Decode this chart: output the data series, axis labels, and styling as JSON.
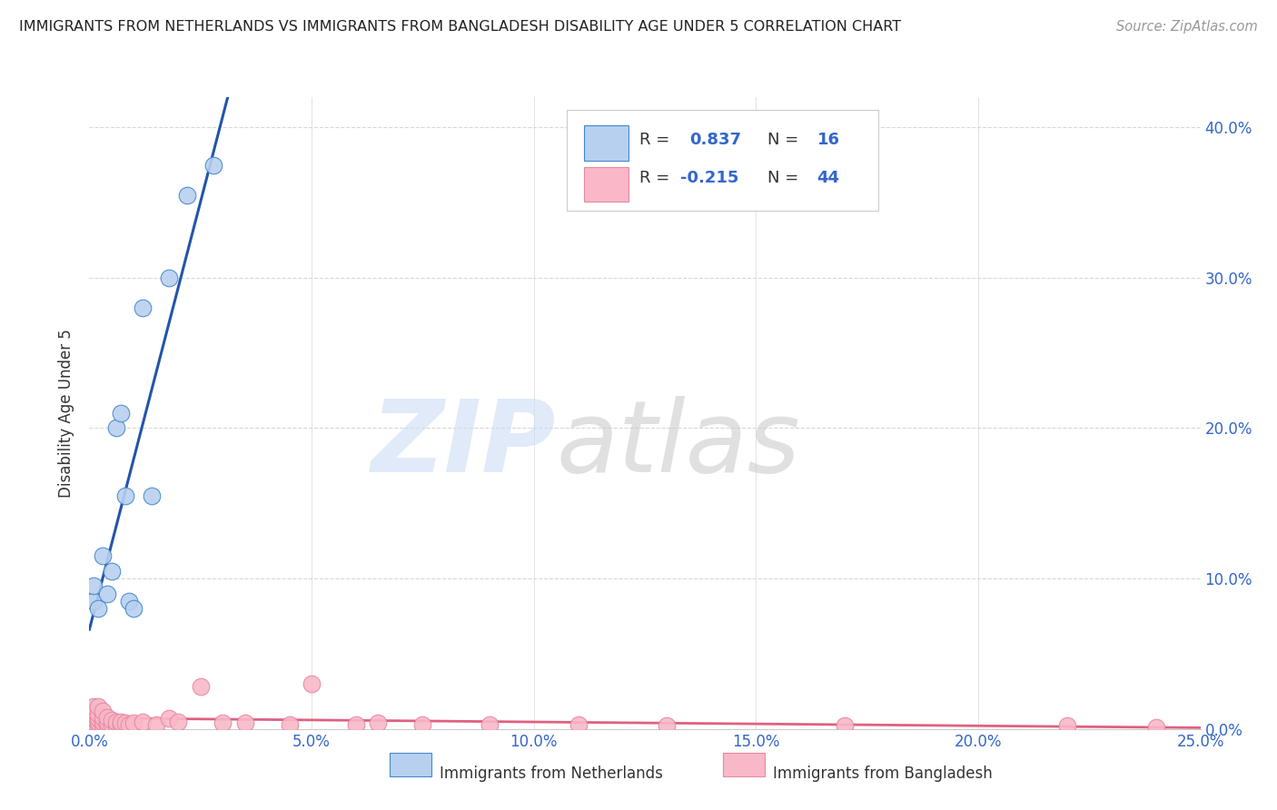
{
  "title": "IMMIGRANTS FROM NETHERLANDS VS IMMIGRANTS FROM BANGLADESH DISABILITY AGE UNDER 5 CORRELATION CHART",
  "source": "Source: ZipAtlas.com",
  "ylabel": "Disability Age Under 5",
  "xlim": [
    0.0,
    0.25
  ],
  "ylim": [
    0.0,
    0.42
  ],
  "xticks": [
    0.0,
    0.05,
    0.1,
    0.15,
    0.2,
    0.25
  ],
  "yticks": [
    0.0,
    0.1,
    0.2,
    0.3,
    0.4
  ],
  "ytick_labels_right": [
    "0.0%",
    "10.0%",
    "20.0%",
    "30.0%",
    "40.0%"
  ],
  "xtick_labels": [
    "0.0%",
    "5.0%",
    "10.0%",
    "15.0%",
    "20.0%",
    "25.0%"
  ],
  "background_color": "#ffffff",
  "grid_color": "#d8d8d8",
  "netherlands_face_color": "#b8d0f0",
  "netherlands_edge_color": "#4488cc",
  "netherlands_line_color": "#2255aa",
  "bangladesh_face_color": "#f8b8c8",
  "bangladesh_edge_color": "#e888a0",
  "bangladesh_line_color": "#e06080",
  "r_netherlands": 0.837,
  "n_netherlands": 16,
  "r_bangladesh": -0.215,
  "n_bangladesh": 44,
  "netherlands_x": [
    0.001,
    0.001,
    0.002,
    0.003,
    0.004,
    0.005,
    0.006,
    0.007,
    0.008,
    0.009,
    0.01,
    0.012,
    0.014,
    0.018,
    0.022,
    0.028
  ],
  "netherlands_y": [
    0.085,
    0.095,
    0.08,
    0.115,
    0.09,
    0.105,
    0.2,
    0.21,
    0.155,
    0.085,
    0.08,
    0.28,
    0.155,
    0.3,
    0.355,
    0.375
  ],
  "bangladesh_x": [
    0.001,
    0.001,
    0.001,
    0.001,
    0.001,
    0.002,
    0.002,
    0.002,
    0.002,
    0.002,
    0.003,
    0.003,
    0.003,
    0.003,
    0.004,
    0.004,
    0.004,
    0.005,
    0.005,
    0.006,
    0.006,
    0.007,
    0.007,
    0.008,
    0.009,
    0.01,
    0.012,
    0.015,
    0.018,
    0.02,
    0.025,
    0.03,
    0.035,
    0.045,
    0.05,
    0.06,
    0.065,
    0.075,
    0.09,
    0.11,
    0.13,
    0.17,
    0.22,
    0.24
  ],
  "bangladesh_y": [
    0.005,
    0.007,
    0.01,
    0.012,
    0.015,
    0.003,
    0.005,
    0.007,
    0.01,
    0.015,
    0.003,
    0.005,
    0.008,
    0.012,
    0.003,
    0.005,
    0.008,
    0.003,
    0.006,
    0.003,
    0.005,
    0.003,
    0.005,
    0.004,
    0.003,
    0.004,
    0.005,
    0.003,
    0.007,
    0.005,
    0.028,
    0.004,
    0.004,
    0.003,
    0.03,
    0.003,
    0.004,
    0.003,
    0.003,
    0.003,
    0.002,
    0.002,
    0.002,
    0.001
  ]
}
